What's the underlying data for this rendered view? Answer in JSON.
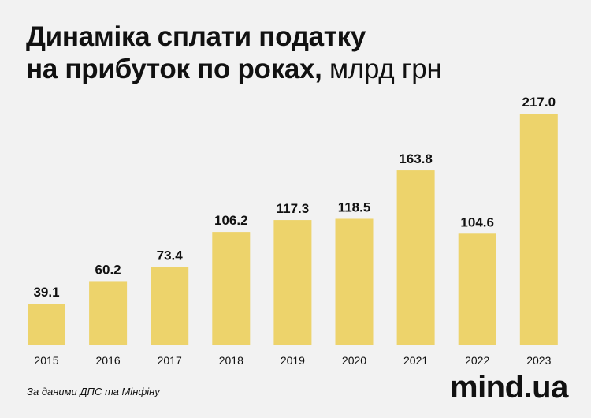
{
  "title_line1": "Динаміка сплати податку",
  "title_line2_bold": "на прибуток по роках,",
  "title_unit": "млрд грн",
  "source": "За даними ДПС та Мінфіну",
  "logo": "mind.ua",
  "colors": {
    "bar": "#edd36b",
    "background": "#f2f2f2",
    "text": "#111111"
  },
  "chart_data": {
    "type": "bar",
    "title": "Динаміка сплати податку на прибуток по роках, млрд грн",
    "categories": [
      "2015",
      "2016",
      "2017",
      "2018",
      "2019",
      "2020",
      "2021",
      "2022",
      "2023"
    ],
    "values": [
      39.1,
      60.2,
      73.4,
      106.2,
      117.3,
      118.5,
      163.8,
      104.6,
      217.0
    ],
    "value_labels": [
      "39.1",
      "60.2",
      "73.4",
      "106.2",
      "117.3",
      "118.5",
      "163.8",
      "104.6",
      "217.0"
    ],
    "xlabel": "",
    "ylabel": "",
    "ylim": [
      0,
      217.0
    ],
    "grid": false,
    "legend": "none"
  }
}
